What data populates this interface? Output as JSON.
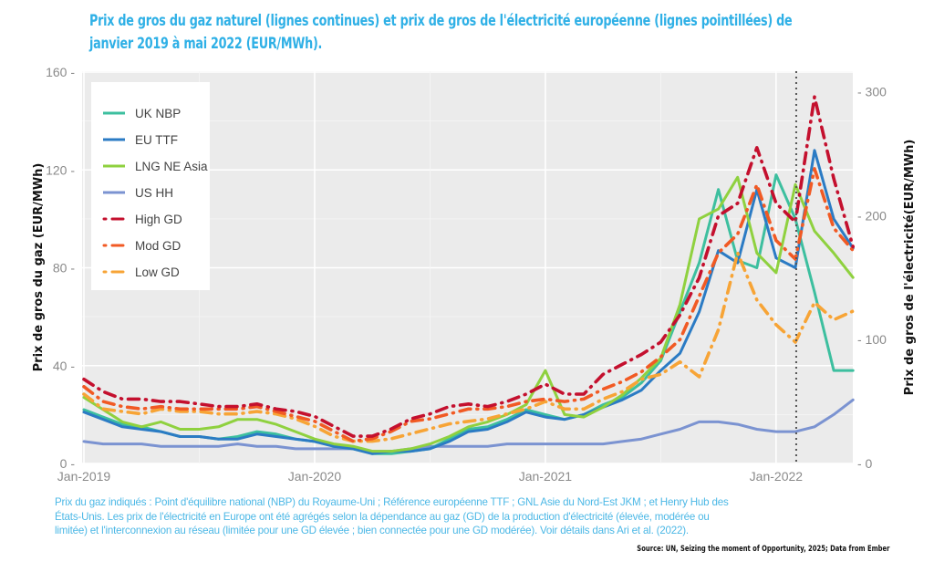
{
  "chart_data": {
    "type": "line",
    "title": "Prix de gros du gaz naturel (lignes continues) et prix de gros de l'électricité européenne (lignes pointillées) de janvier 2019 à mai 2022 (EUR/MWh).",
    "ylabel": "Prix de gros du gaz (EUR/MWh)",
    "ylabel_right": "Prix de gros de l'électricité(EUR/MWh)",
    "ylim": [
      0,
      160
    ],
    "ylim_right": [
      0,
      316
    ],
    "yticks": [
      "0",
      "40",
      "80",
      "120",
      "160"
    ],
    "yticks_right": [
      "0",
      "100",
      "200",
      "300"
    ],
    "xticks": [
      "Jan-2019",
      "Jan-2020",
      "Jan-2021",
      "Jan-2022"
    ],
    "x_start": "Jan-2019",
    "x_end": "May-2022",
    "vline_month_index": 37,
    "grid": true,
    "legend_position": "top-left",
    "series": [
      {
        "name": "UK NBP",
        "axis": "left",
        "style": "solid",
        "color": "#3dbf9f",
        "values": [
          22,
          19,
          16,
          15,
          13,
          11,
          11,
          10,
          11,
          13,
          12,
          10,
          9,
          7,
          6,
          4,
          4,
          5,
          6,
          10,
          14,
          15,
          18,
          22,
          20,
          18,
          20,
          24,
          27,
          33,
          42,
          62,
          82,
          112,
          83,
          80,
          118,
          100,
          70,
          38,
          38
        ]
      },
      {
        "name": "EU TTF",
        "axis": "left",
        "style": "solid",
        "color": "#2b7bc4",
        "values": [
          21,
          18,
          15,
          14,
          13,
          11,
          11,
          10,
          10,
          12,
          11,
          10,
          9,
          7,
          6,
          4,
          5,
          5,
          6,
          9,
          13,
          14,
          17,
          21,
          19,
          18,
          20,
          23,
          26,
          30,
          38,
          45,
          62,
          87,
          82,
          112,
          84,
          80,
          128,
          100,
          88
        ]
      },
      {
        "name": "LNG NE Asia",
        "axis": "left",
        "style": "solid",
        "color": "#8fd13f",
        "values": [
          27,
          22,
          17,
          15,
          17,
          14,
          14,
          15,
          18,
          18,
          16,
          13,
          10,
          8,
          7,
          5,
          5,
          6,
          8,
          11,
          15,
          17,
          20,
          24,
          38,
          20,
          19,
          23,
          28,
          35,
          43,
          65,
          100,
          104,
          117,
          86,
          78,
          114,
          95,
          86,
          76
        ]
      },
      {
        "name": "US HH",
        "axis": "left",
        "style": "solid",
        "color": "#7b93d1",
        "values": [
          9,
          8,
          8,
          8,
          7,
          7,
          7,
          7,
          8,
          7,
          7,
          6,
          6,
          6,
          6,
          5,
          5,
          6,
          7,
          7,
          7,
          7,
          8,
          8,
          8,
          8,
          8,
          8,
          9,
          10,
          12,
          14,
          17,
          17,
          16,
          14,
          13,
          13,
          15,
          20,
          26
        ]
      },
      {
        "name": "High GD",
        "axis": "right",
        "style": "dashdot",
        "color": "#c4102e",
        "values": [
          68,
          58,
          52,
          52,
          50,
          50,
          48,
          46,
          46,
          48,
          44,
          42,
          38,
          30,
          22,
          22,
          28,
          36,
          40,
          46,
          48,
          46,
          50,
          56,
          64,
          56,
          56,
          72,
          80,
          88,
          98,
          120,
          150,
          200,
          210,
          255,
          210,
          195,
          296,
          230,
          175
        ]
      },
      {
        "name": "Mod GD",
        "axis": "right",
        "style": "dashdot",
        "color": "#f15a24",
        "values": [
          62,
          50,
          46,
          44,
          46,
          44,
          44,
          44,
          44,
          46,
          42,
          38,
          34,
          26,
          18,
          20,
          26,
          34,
          36,
          40,
          44,
          44,
          46,
          50,
          52,
          50,
          52,
          60,
          66,
          74,
          86,
          100,
          135,
          170,
          185,
          225,
          180,
          165,
          238,
          190,
          172
        ]
      },
      {
        "name": "Low GD",
        "axis": "right",
        "style": "dashdot",
        "color": "#f7a436",
        "values": [
          56,
          44,
          42,
          40,
          44,
          42,
          42,
          40,
          40,
          42,
          40,
          36,
          30,
          22,
          18,
          18,
          20,
          24,
          28,
          32,
          34,
          36,
          40,
          44,
          50,
          44,
          44,
          52,
          58,
          68,
          72,
          82,
          70,
          108,
          170,
          132,
          112,
          98,
          130,
          116,
          123
        ]
      }
    ]
  },
  "legend": {
    "items": [
      "UK NBP",
      "EU TTF",
      "LNG NE Asia",
      "US HH",
      "High GD",
      "Mod GD",
      "Low GD"
    ]
  },
  "footnote": {
    "line1": "Prix du gaz indiqués : Point d'équilibre national (NBP) du Royaume-Uni ; Référence européenne TTF ; GNL Asie du Nord-Est JKM ; et Henry Hub des",
    "line2": "États-Unis. Les prix de l'électricité en Europe ont été agrégés selon la dépendance au gaz (GD) de la production d'électricité (élevée, modérée ou",
    "line3": "limitée) et l'interconnexion au réseau (limitée pour une GD élevée ; bien connectée pour une GD modérée). Voir détails dans Ari et al. (2022)."
  },
  "source": "Source: UN, Seizing the moment of Opportunity, 2025; Data from Ember"
}
